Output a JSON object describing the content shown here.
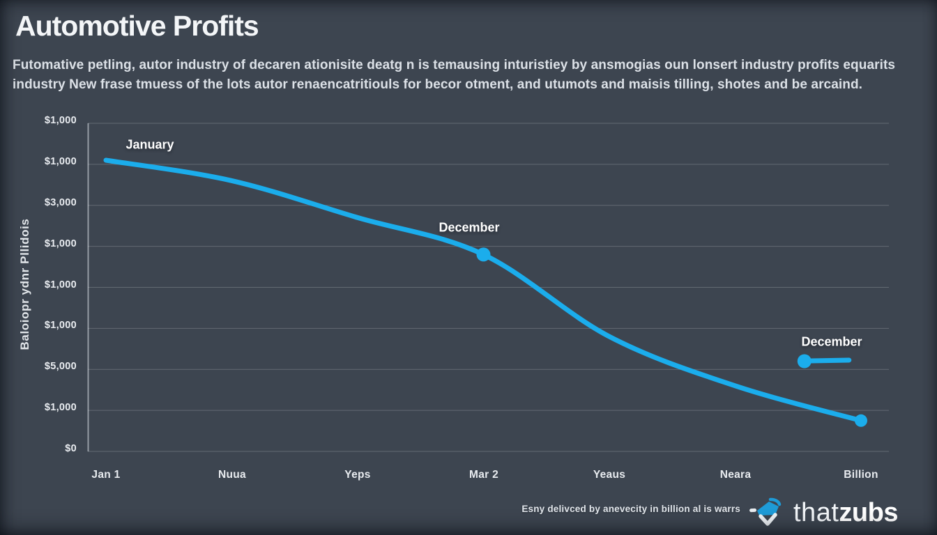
{
  "header": {
    "title": "Automotive Profits",
    "subtitle_line1": "Futomative petling, autor industry of decaren ationisite deatg n is temausing inturistiey by ansmogias oun lonsert industry profits equarits",
    "subtitle_line2": "industry New frase tmuess of the lots autor renaencatritiouls for becor otment, and utumots and maisis tilling, shotes and be arcaind."
  },
  "chart_data": {
    "type": "line",
    "title": "Automotive Profits",
    "categories": [
      "Jan 1",
      "Nuua",
      "Yeps",
      "Mar 2",
      "Yeaus",
      "Neara",
      "Billion"
    ],
    "series": [
      {
        "name": "Automotive profits",
        "values": [
          7100,
          6600,
          5700,
          4800,
          2800,
          1600,
          750
        ]
      }
    ],
    "xlabel": "",
    "ylabel": "Baloiopr ydnr Pllidois",
    "ylim": [
      0,
      8000
    ],
    "y_tick_labels": [
      "$1,000",
      "$1,000",
      "$3,000",
      "$1,000",
      "$1,000",
      "$1,000",
      "$5,000",
      "$1,000",
      "$0"
    ],
    "grid": "horizontal",
    "legend": "none",
    "line_color": "#1badec",
    "annotations": [
      {
        "label": "January",
        "x_index": 0,
        "attach": "point",
        "marker": false
      },
      {
        "label": "December",
        "x_index": 3,
        "attach": "point",
        "marker": true
      },
      {
        "label": "December",
        "x_index": 5.55,
        "attach": "floating",
        "marker": true,
        "value": 2200
      }
    ]
  },
  "footer": {
    "caption": "Esny delivced by anevecity in billion al is warrs",
    "logo_text_light": "that",
    "logo_text_bold": "zubs"
  },
  "colors": {
    "background": "#3d4550",
    "line": "#1badec",
    "text": "#f4f6f8",
    "gridline": "#ffffff"
  }
}
